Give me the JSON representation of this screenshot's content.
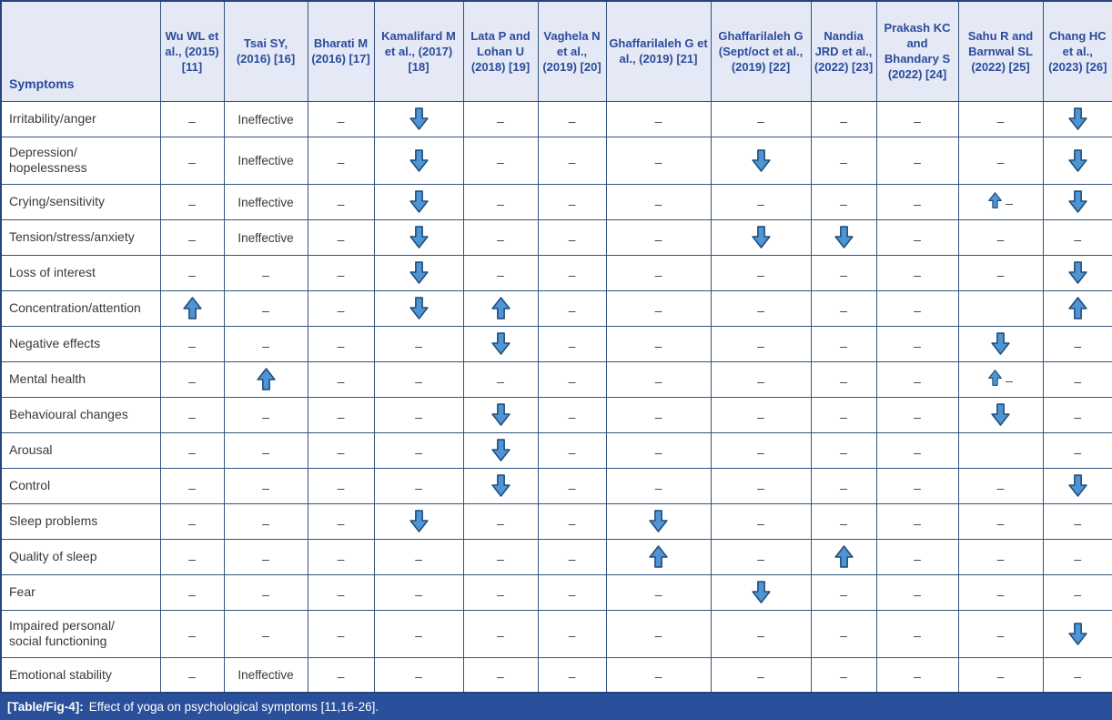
{
  "caption": {
    "label": "[Table/Fig-4]:",
    "text": "Effect of yoga on psychological symptoms [11,16-26]."
  },
  "colors": {
    "header_bg": "#e5e9f5",
    "header_text": "#2b4b9c",
    "grid_border": "#33547e",
    "outer_border": "#24457b",
    "caption_bg": "#2a4f9b",
    "caption_text": "#ffffff",
    "body_text": "#3a3a3a",
    "arrow_fill": "#4f94d4",
    "arrow_stroke": "#1f4e79"
  },
  "glyphs": {
    "dash": "–",
    "ineffective": "Ineffective"
  },
  "table": {
    "symptom_header": "Symptoms",
    "columns": [
      {
        "label": "Wu WL et al., (2015) [11]"
      },
      {
        "label": "Tsai SY, (2016) [16]"
      },
      {
        "label": "Bharati M (2016) [17]"
      },
      {
        "label": "Kamalifard M et al., (2017) [18]"
      },
      {
        "label": "Lata P and Lohan U (2018) [19]"
      },
      {
        "label": "Vaghela N et al., (2019) [20]"
      },
      {
        "label": "Ghaffarilaleh G et al., (2019) [21]"
      },
      {
        "label": "Ghaffarilaleh G (Sept/oct et al., (2019) [22]"
      },
      {
        "label": "Nandia JRD et al., (2022) [23]"
      },
      {
        "label": "Prakash KC and Bhandary S (2022) [24]"
      },
      {
        "label": "Sahu R and Barnwal SL (2022) [25]"
      },
      {
        "label": "Chang HC et al., (2023) [26]"
      }
    ],
    "rows": [
      {
        "symptom": "Irritability/anger",
        "cells": [
          "dash",
          "ineffective",
          "dash",
          "down",
          "dash",
          "dash",
          "dash",
          "dash",
          "dash",
          "dash",
          "dash",
          "down"
        ]
      },
      {
        "symptom": "Depression/\nhopelessness",
        "cells": [
          "dash",
          "ineffective",
          "dash",
          "down",
          "dash",
          "dash",
          "dash",
          "down",
          "dash",
          "dash",
          "dash",
          "down"
        ]
      },
      {
        "symptom": "Crying/sensitivity",
        "cells": [
          "dash",
          "ineffective",
          "dash",
          "down",
          "dash",
          "dash",
          "dash",
          "dash",
          "dash",
          "dash",
          "up_dash",
          "down"
        ]
      },
      {
        "symptom": "Tension/stress/anxiety",
        "cells": [
          "dash",
          "ineffective",
          "dash",
          "down",
          "dash",
          "dash",
          "dash",
          "down",
          "down",
          "dash",
          "dash",
          "dash"
        ]
      },
      {
        "symptom": "Loss of interest",
        "cells": [
          "dash",
          "dash",
          "dash",
          "down",
          "dash",
          "dash",
          "dash",
          "dash",
          "dash",
          "dash",
          "dash",
          "down"
        ]
      },
      {
        "symptom": "Concentration/attention",
        "cells": [
          "up",
          "dash",
          "dash",
          "down",
          "up",
          "dash",
          "dash",
          "dash",
          "dash",
          "dash",
          "empty",
          "up"
        ]
      },
      {
        "symptom": "Negative effects",
        "cells": [
          "dash",
          "dash",
          "dash",
          "dash",
          "down",
          "dash",
          "dash",
          "dash",
          "dash",
          "dash",
          "down",
          "dash"
        ]
      },
      {
        "symptom": "Mental health",
        "cells": [
          "dash",
          "up",
          "dash",
          "dash",
          "dash",
          "dash",
          "dash",
          "dash",
          "dash",
          "dash",
          "up_dash",
          "dash"
        ]
      },
      {
        "symptom": "Behavioural changes",
        "cells": [
          "dash",
          "dash",
          "dash",
          "dash",
          "down",
          "dash",
          "dash",
          "dash",
          "dash",
          "dash",
          "down",
          "dash"
        ]
      },
      {
        "symptom": "Arousal",
        "cells": [
          "dash",
          "dash",
          "dash",
          "dash",
          "down",
          "dash",
          "dash",
          "dash",
          "dash",
          "dash",
          "empty",
          "dash"
        ]
      },
      {
        "symptom": "Control",
        "cells": [
          "dash",
          "dash",
          "dash",
          "dash",
          "down",
          "dash",
          "dash",
          "dash",
          "dash",
          "dash",
          "dash",
          "down"
        ]
      },
      {
        "symptom": "Sleep problems",
        "cells": [
          "dash",
          "dash",
          "dash",
          "down",
          "dash",
          "dash",
          "down",
          "dash",
          "dash",
          "dash",
          "dash",
          "dash"
        ]
      },
      {
        "symptom": "Quality of sleep",
        "cells": [
          "dash",
          "dash",
          "dash",
          "dash",
          "dash",
          "dash",
          "up",
          "dash",
          "up",
          "dash",
          "dash",
          "dash"
        ]
      },
      {
        "symptom": "Fear",
        "cells": [
          "dash",
          "dash",
          "dash",
          "dash",
          "dash",
          "dash",
          "dash",
          "down",
          "dash",
          "dash",
          "dash",
          "dash"
        ]
      },
      {
        "symptom": "Impaired personal/\nsocial functioning",
        "cells": [
          "dash",
          "dash",
          "dash",
          "dash",
          "dash",
          "dash",
          "dash",
          "dash",
          "dash",
          "dash",
          "dash",
          "down"
        ]
      },
      {
        "symptom": "Emotional stability",
        "cells": [
          "dash",
          "ineffective",
          "dash",
          "dash",
          "dash",
          "dash",
          "dash",
          "dash",
          "dash",
          "dash",
          "dash",
          "dash"
        ]
      }
    ]
  }
}
